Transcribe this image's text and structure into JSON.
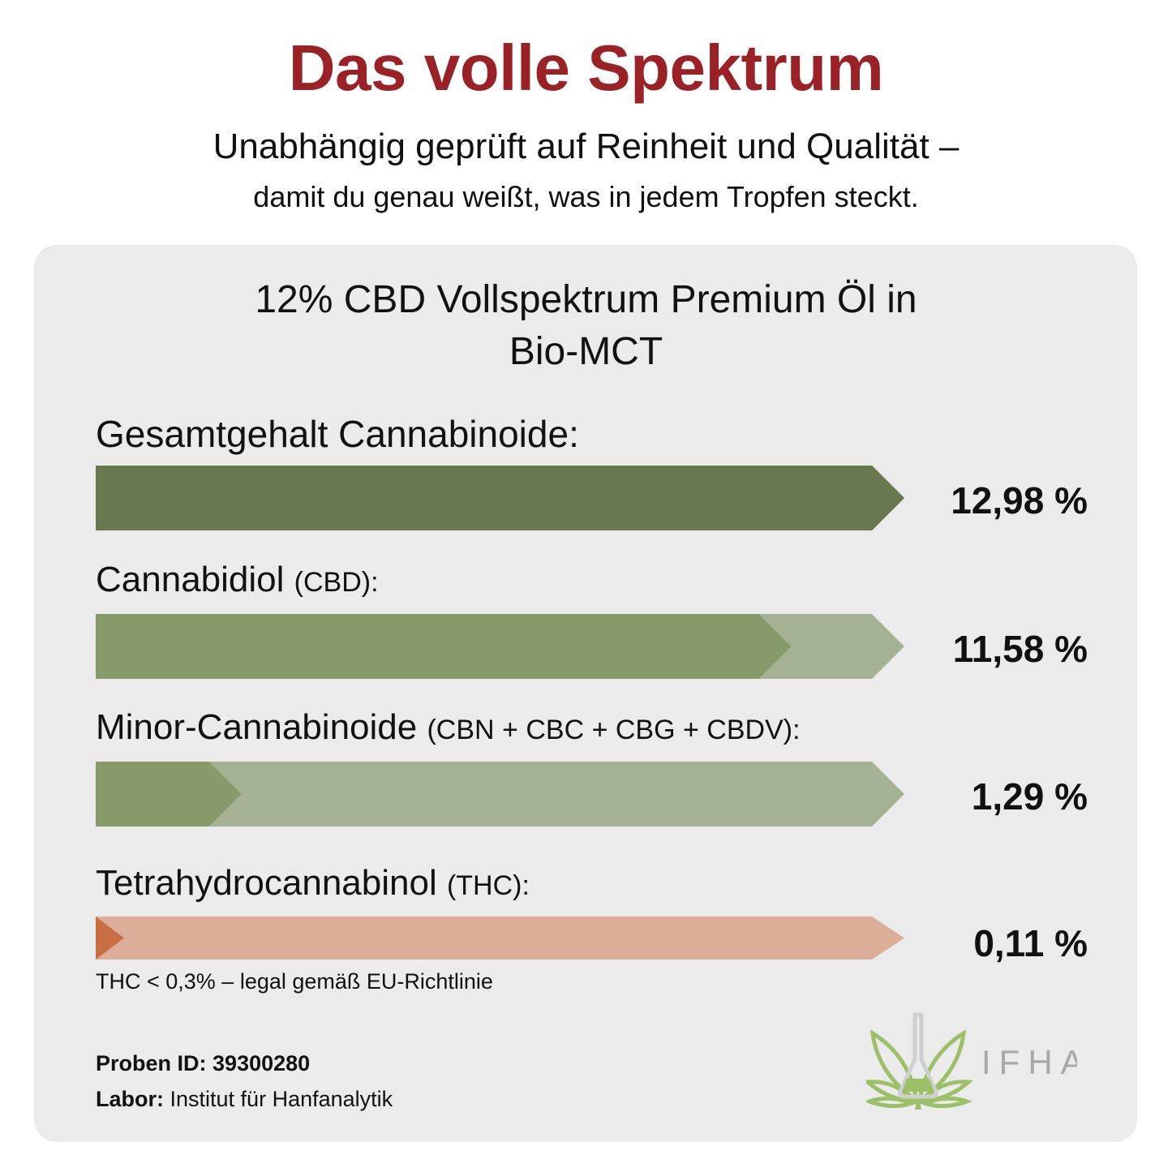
{
  "header": {
    "title": "Das volle Spektrum",
    "subtitle_line1": "Unabhängig geprüft auf Reinheit und Qualität –",
    "subtitle_line2": "damit du genau weißt, was in jedem Tropfen steckt."
  },
  "product": {
    "title_line1": "12% CBD Vollspektrum Premium Öl in",
    "title_line2": "Bio-MCT"
  },
  "chart_data": {
    "type": "bar",
    "unit": "%",
    "items": [
      {
        "label": "Gesamtgehalt Cannabinoide:",
        "sublabel": "",
        "value": 12.98,
        "value_label": "12,98 %",
        "fill_fraction": 1.0,
        "fill_color": "#68784f",
        "track_color": "#68784f"
      },
      {
        "label": "Cannabidiol",
        "sublabel": "(CBD):",
        "value": 11.58,
        "value_label": "11,58 %",
        "fill_fraction": 0.86,
        "fill_color": "#869a6a",
        "track_color": "#a4b192"
      },
      {
        "label": "Minor-Cannabinoide",
        "sublabel": "(CBN + CBC + CBG + CBDV):",
        "value": 1.29,
        "value_label": "1,29 %",
        "fill_fraction": 0.18,
        "fill_color": "#869a6a",
        "track_color": "#a4b192"
      },
      {
        "label": "Tetrahydrocannabinol",
        "sublabel": "(THC):",
        "value": 0.11,
        "value_label": "0,11 %",
        "fill_fraction": 0.035,
        "fill_color": "#c96d43",
        "track_color": "#dcae98"
      }
    ]
  },
  "note": "THC < 0,3% – legal gemäß EU-Richtlinie",
  "meta": {
    "sample_label": "Proben ID:",
    "sample_value": "39300280",
    "lab_label": "Labor:",
    "lab_value": "Institut für Hanfanalytik"
  },
  "logo": {
    "text": "IFHA",
    "icon": "cannabis-leaf-flask-icon"
  }
}
